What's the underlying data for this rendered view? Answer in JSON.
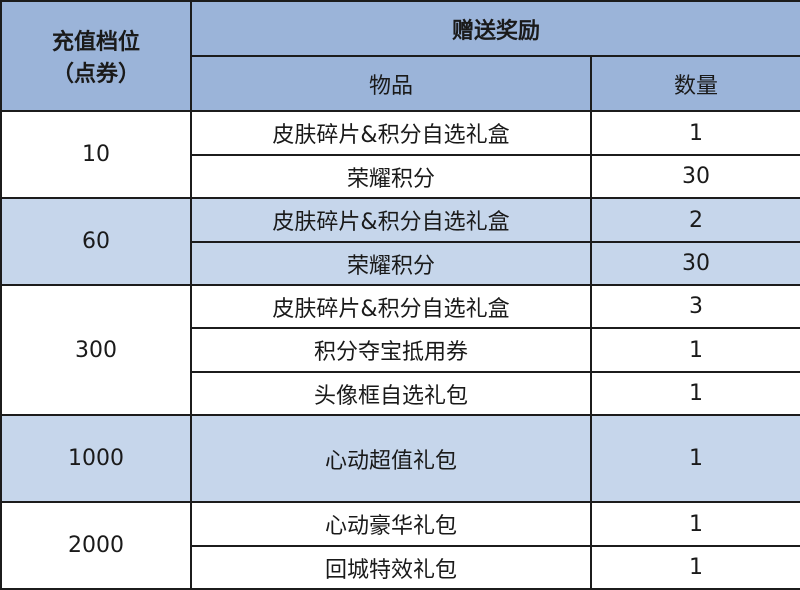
{
  "header": {
    "tier_label": "充值档位",
    "tier_unit": "（点券）",
    "reward_label": "赠送奖励",
    "item_label": "物品",
    "qty_label": "数量"
  },
  "colors": {
    "header_bg": "#9bb4d9",
    "alt_row_bg": "#c6d6eb",
    "border": "#1c1c1c"
  },
  "tiers": [
    {
      "amount": "10",
      "items": [
        {
          "name": "皮肤碎片&积分自选礼盒",
          "qty": "1"
        },
        {
          "name": "荣耀积分",
          "qty": "30"
        }
      ]
    },
    {
      "amount": "60",
      "items": [
        {
          "name": "皮肤碎片&积分自选礼盒",
          "qty": "2"
        },
        {
          "name": "荣耀积分",
          "qty": "30"
        }
      ]
    },
    {
      "amount": "300",
      "items": [
        {
          "name": "皮肤碎片&积分自选礼盒",
          "qty": "3"
        },
        {
          "name": "积分夺宝抵用券",
          "qty": "1"
        },
        {
          "name": "头像框自选礼包",
          "qty": "1"
        }
      ]
    },
    {
      "amount": "1000",
      "items": [
        {
          "name": "心动超值礼包",
          "qty": "1"
        }
      ]
    },
    {
      "amount": "2000",
      "items": [
        {
          "name": "心动豪华礼包",
          "qty": "1"
        },
        {
          "name": "回城特效礼包",
          "qty": "1"
        }
      ]
    }
  ]
}
